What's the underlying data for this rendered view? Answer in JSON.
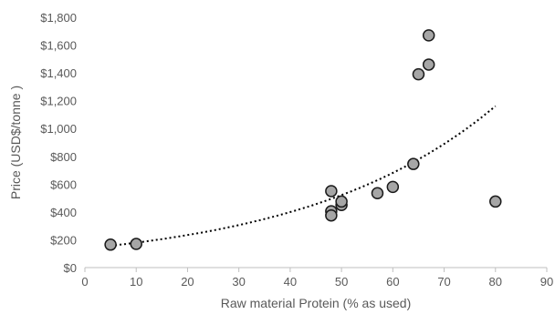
{
  "chart_data": {
    "type": "scatter",
    "xlabel": "Raw material Protein (% as used)",
    "ylabel": "Price (USD$/tonne )",
    "xlim": [
      0,
      90
    ],
    "ylim": [
      0,
      1800
    ],
    "x_ticks": [
      0,
      10,
      20,
      30,
      40,
      50,
      60,
      70,
      80,
      90
    ],
    "x_tick_labels": [
      "0",
      "10",
      "20",
      "30",
      "40",
      "50",
      "60",
      "70",
      "80",
      "90"
    ],
    "y_ticks": [
      0,
      200,
      400,
      600,
      800,
      1000,
      1200,
      1400,
      1600,
      1800
    ],
    "y_tick_labels": [
      "$0",
      "$200",
      "$400",
      "$600",
      "$800",
      "$1,000",
      "$1,200",
      "$1,400",
      "$1,600",
      "$1,800"
    ],
    "grid": false,
    "legend": "none",
    "trendline": {
      "type": "exponential",
      "style": "dotted",
      "x_range": [
        5,
        80
      ],
      "a": 137.2,
      "b": 0.0267
    },
    "series": [
      {
        "points": [
          {
            "x": 5,
            "y": 165
          },
          {
            "x": 10,
            "y": 170
          },
          {
            "x": 48,
            "y": 550
          },
          {
            "x": 48,
            "y": 405
          },
          {
            "x": 48,
            "y": 375
          },
          {
            "x": 50,
            "y": 450
          },
          {
            "x": 50,
            "y": 475
          },
          {
            "x": 57,
            "y": 535
          },
          {
            "x": 60,
            "y": 580
          },
          {
            "x": 64,
            "y": 745
          },
          {
            "x": 65,
            "y": 1390
          },
          {
            "x": 67,
            "y": 1460
          },
          {
            "x": 67,
            "y": 1670
          },
          {
            "x": 80,
            "y": 475
          }
        ]
      }
    ]
  },
  "colors": {
    "marker_fill": "#a6a6a6",
    "marker_stroke": "#1a1a1a",
    "axis": "#bfbfbf",
    "trendline": "#000000",
    "text": "#595959"
  }
}
